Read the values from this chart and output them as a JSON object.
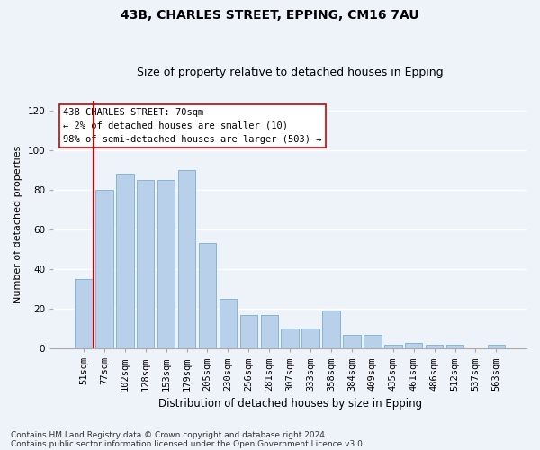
{
  "title1": "43B, CHARLES STREET, EPPING, CM16 7AU",
  "title2": "Size of property relative to detached houses in Epping",
  "xlabel": "Distribution of detached houses by size in Epping",
  "ylabel": "Number of detached properties",
  "categories": [
    "51sqm",
    "77sqm",
    "102sqm",
    "128sqm",
    "153sqm",
    "179sqm",
    "205sqm",
    "230sqm",
    "256sqm",
    "281sqm",
    "307sqm",
    "333sqm",
    "358sqm",
    "384sqm",
    "409sqm",
    "435sqm",
    "461sqm",
    "486sqm",
    "512sqm",
    "537sqm",
    "563sqm"
  ],
  "values": [
    35,
    80,
    88,
    85,
    85,
    90,
    53,
    25,
    17,
    17,
    10,
    10,
    19,
    7,
    7,
    2,
    3,
    2,
    2,
    0,
    2
  ],
  "bar_color": "#b8d0ea",
  "bar_edge_color": "#7aadd4",
  "annotation_line_color": "#cc0000",
  "annotation_box_color": "#cc0000",
  "annotation_text_line1": "43B CHARLES STREET: 70sqm",
  "annotation_text_line2": "← 2% of detached houses are smaller (10)",
  "annotation_text_line3": "98% of semi-detached houses are larger (503) →",
  "ylim": [
    0,
    125
  ],
  "yticks": [
    0,
    20,
    40,
    60,
    80,
    100,
    120
  ],
  "footnote1": "Contains HM Land Registry data © Crown copyright and database right 2024.",
  "footnote2": "Contains public sector information licensed under the Open Government Licence v3.0.",
  "bg_color": "#eef2f9",
  "plot_bg_color": "#eef2f9",
  "grid_color": "#ffffff",
  "title1_fontsize": 10,
  "title2_fontsize": 9,
  "xlabel_fontsize": 8.5,
  "ylabel_fontsize": 8,
  "tick_fontsize": 7.5,
  "annotation_fontsize": 7.5,
  "footnote_fontsize": 6.5
}
